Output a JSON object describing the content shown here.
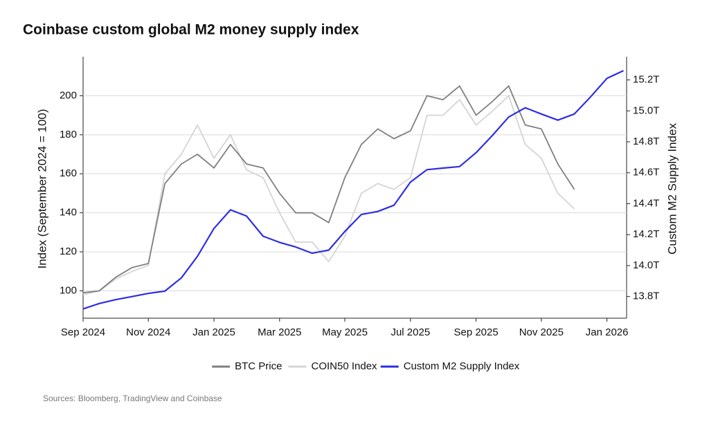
{
  "chart_data": {
    "type": "line",
    "title": "Coinbase custom global M2 money supply index",
    "ylabel": "Index (September 2024 = 100)",
    "y2label": "Custom M2 Supply Index",
    "source": "Sources: Bloomberg, TradingView and Coinbase",
    "legend": "bottom",
    "grid": true,
    "x": [
      2024.667,
      2024.708,
      2024.75,
      2024.792,
      2024.833,
      2024.875,
      2024.917,
      2024.958,
      2025.0,
      2025.042,
      2025.083,
      2025.125,
      2025.167,
      2025.208,
      2025.25,
      2025.292,
      2025.333,
      2025.375,
      2025.417,
      2025.458,
      2025.5,
      2025.542,
      2025.583,
      2025.625,
      2025.667,
      2025.708,
      2025.75,
      2025.792,
      2025.833,
      2025.875,
      2025.917,
      2025.958,
      2026.0,
      2026.042
    ],
    "xlim": [
      2024.667,
      2026.05
    ],
    "xticks": [
      {
        "value": 2024.667,
        "label": "Sep 2024"
      },
      {
        "value": 2024.833,
        "label": "Nov 2024"
      },
      {
        "value": 2025.0,
        "label": "Jan 2025"
      },
      {
        "value": 2025.167,
        "label": "Mar 2025"
      },
      {
        "value": 2025.333,
        "label": "May 2025"
      },
      {
        "value": 2025.5,
        "label": "Jul 2025"
      },
      {
        "value": 2025.667,
        "label": "Sep 2025"
      },
      {
        "value": 2025.833,
        "label": "Nov 2025"
      },
      {
        "value": 2026.0,
        "label": "Jan 2026"
      }
    ],
    "ylim": [
      86,
      220
    ],
    "yticks": [
      100,
      120,
      140,
      160,
      180,
      200
    ],
    "y2lim": [
      13.66,
      15.35
    ],
    "y2ticks": [
      {
        "value": 13.8,
        "label": "13.8T"
      },
      {
        "value": 14.0,
        "label": "14.0T"
      },
      {
        "value": 14.2,
        "label": "14.2T"
      },
      {
        "value": 14.4,
        "label": "14.4T"
      },
      {
        "value": 14.6,
        "label": "14.6T"
      },
      {
        "value": 14.8,
        "label": "14.8T"
      },
      {
        "value": 15.0,
        "label": "15.0T"
      },
      {
        "value": 15.2,
        "label": "15.2T"
      }
    ],
    "series": [
      {
        "name": "BTC Price",
        "color": "#7f7f7f",
        "values": [
          99,
          100,
          107,
          112,
          114,
          155,
          165,
          170,
          163,
          175,
          165,
          163,
          150,
          140,
          140,
          135,
          158,
          175,
          183,
          178,
          182,
          200,
          198,
          205,
          190,
          197,
          205,
          185,
          183,
          165,
          152,
          null,
          null,
          null
        ]
      },
      {
        "name": "COIN50 Index",
        "color": "#d4d4d4",
        "values": [
          98,
          100,
          106,
          110,
          113,
          160,
          170,
          185,
          168,
          180,
          162,
          158,
          140,
          125,
          125,
          115,
          128,
          150,
          155,
          152,
          158,
          190,
          190,
          198,
          185,
          192,
          200,
          175,
          168,
          150,
          142,
          null,
          null,
          null
        ]
      },
      {
        "name": "Custom M2 Supply Index",
        "color": "#2c2ce6",
        "axis": "y2",
        "values": [
          13.72,
          13.755,
          13.78,
          13.8,
          13.82,
          13.835,
          13.92,
          14.06,
          14.24,
          14.36,
          14.32,
          14.19,
          14.15,
          14.12,
          14.08,
          14.1,
          14.22,
          14.33,
          14.35,
          14.39,
          14.54,
          14.62,
          14.63,
          14.64,
          14.73,
          14.84,
          14.96,
          15.02,
          14.98,
          14.94,
          14.98,
          15.09,
          15.21,
          15.26
        ]
      }
    ]
  }
}
